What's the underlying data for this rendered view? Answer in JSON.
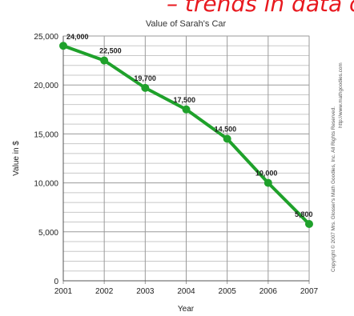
{
  "annotation": {
    "text": "– trends in data of",
    "color": "#e8191f"
  },
  "copyright": {
    "line1": "Copyright © 2007 Mrs. Glosser's Math Goodies, Inc. All Rights Reserved.",
    "line2": "http://www.mathgoodies.com"
  },
  "chart_data": {
    "type": "line",
    "title": "Value of Sarah's Car",
    "xlabel": "Year",
    "ylabel": "Value in $",
    "categories": [
      "2001",
      "2002",
      "2003",
      "2004",
      "2005",
      "2006",
      "2007"
    ],
    "values": [
      24000,
      22500,
      19700,
      17500,
      14500,
      10000,
      5800
    ],
    "data_labels": [
      "24,000",
      "22,500",
      "19,700",
      "17,500",
      "14,500",
      "10,000",
      "5,800"
    ],
    "yticks": [
      "0",
      "5,000",
      "10,000",
      "15,000",
      "20,000",
      "25,000"
    ],
    "ylim": [
      0,
      25000
    ],
    "grid": true,
    "legend": "none",
    "line_color": "#1fa12b"
  }
}
